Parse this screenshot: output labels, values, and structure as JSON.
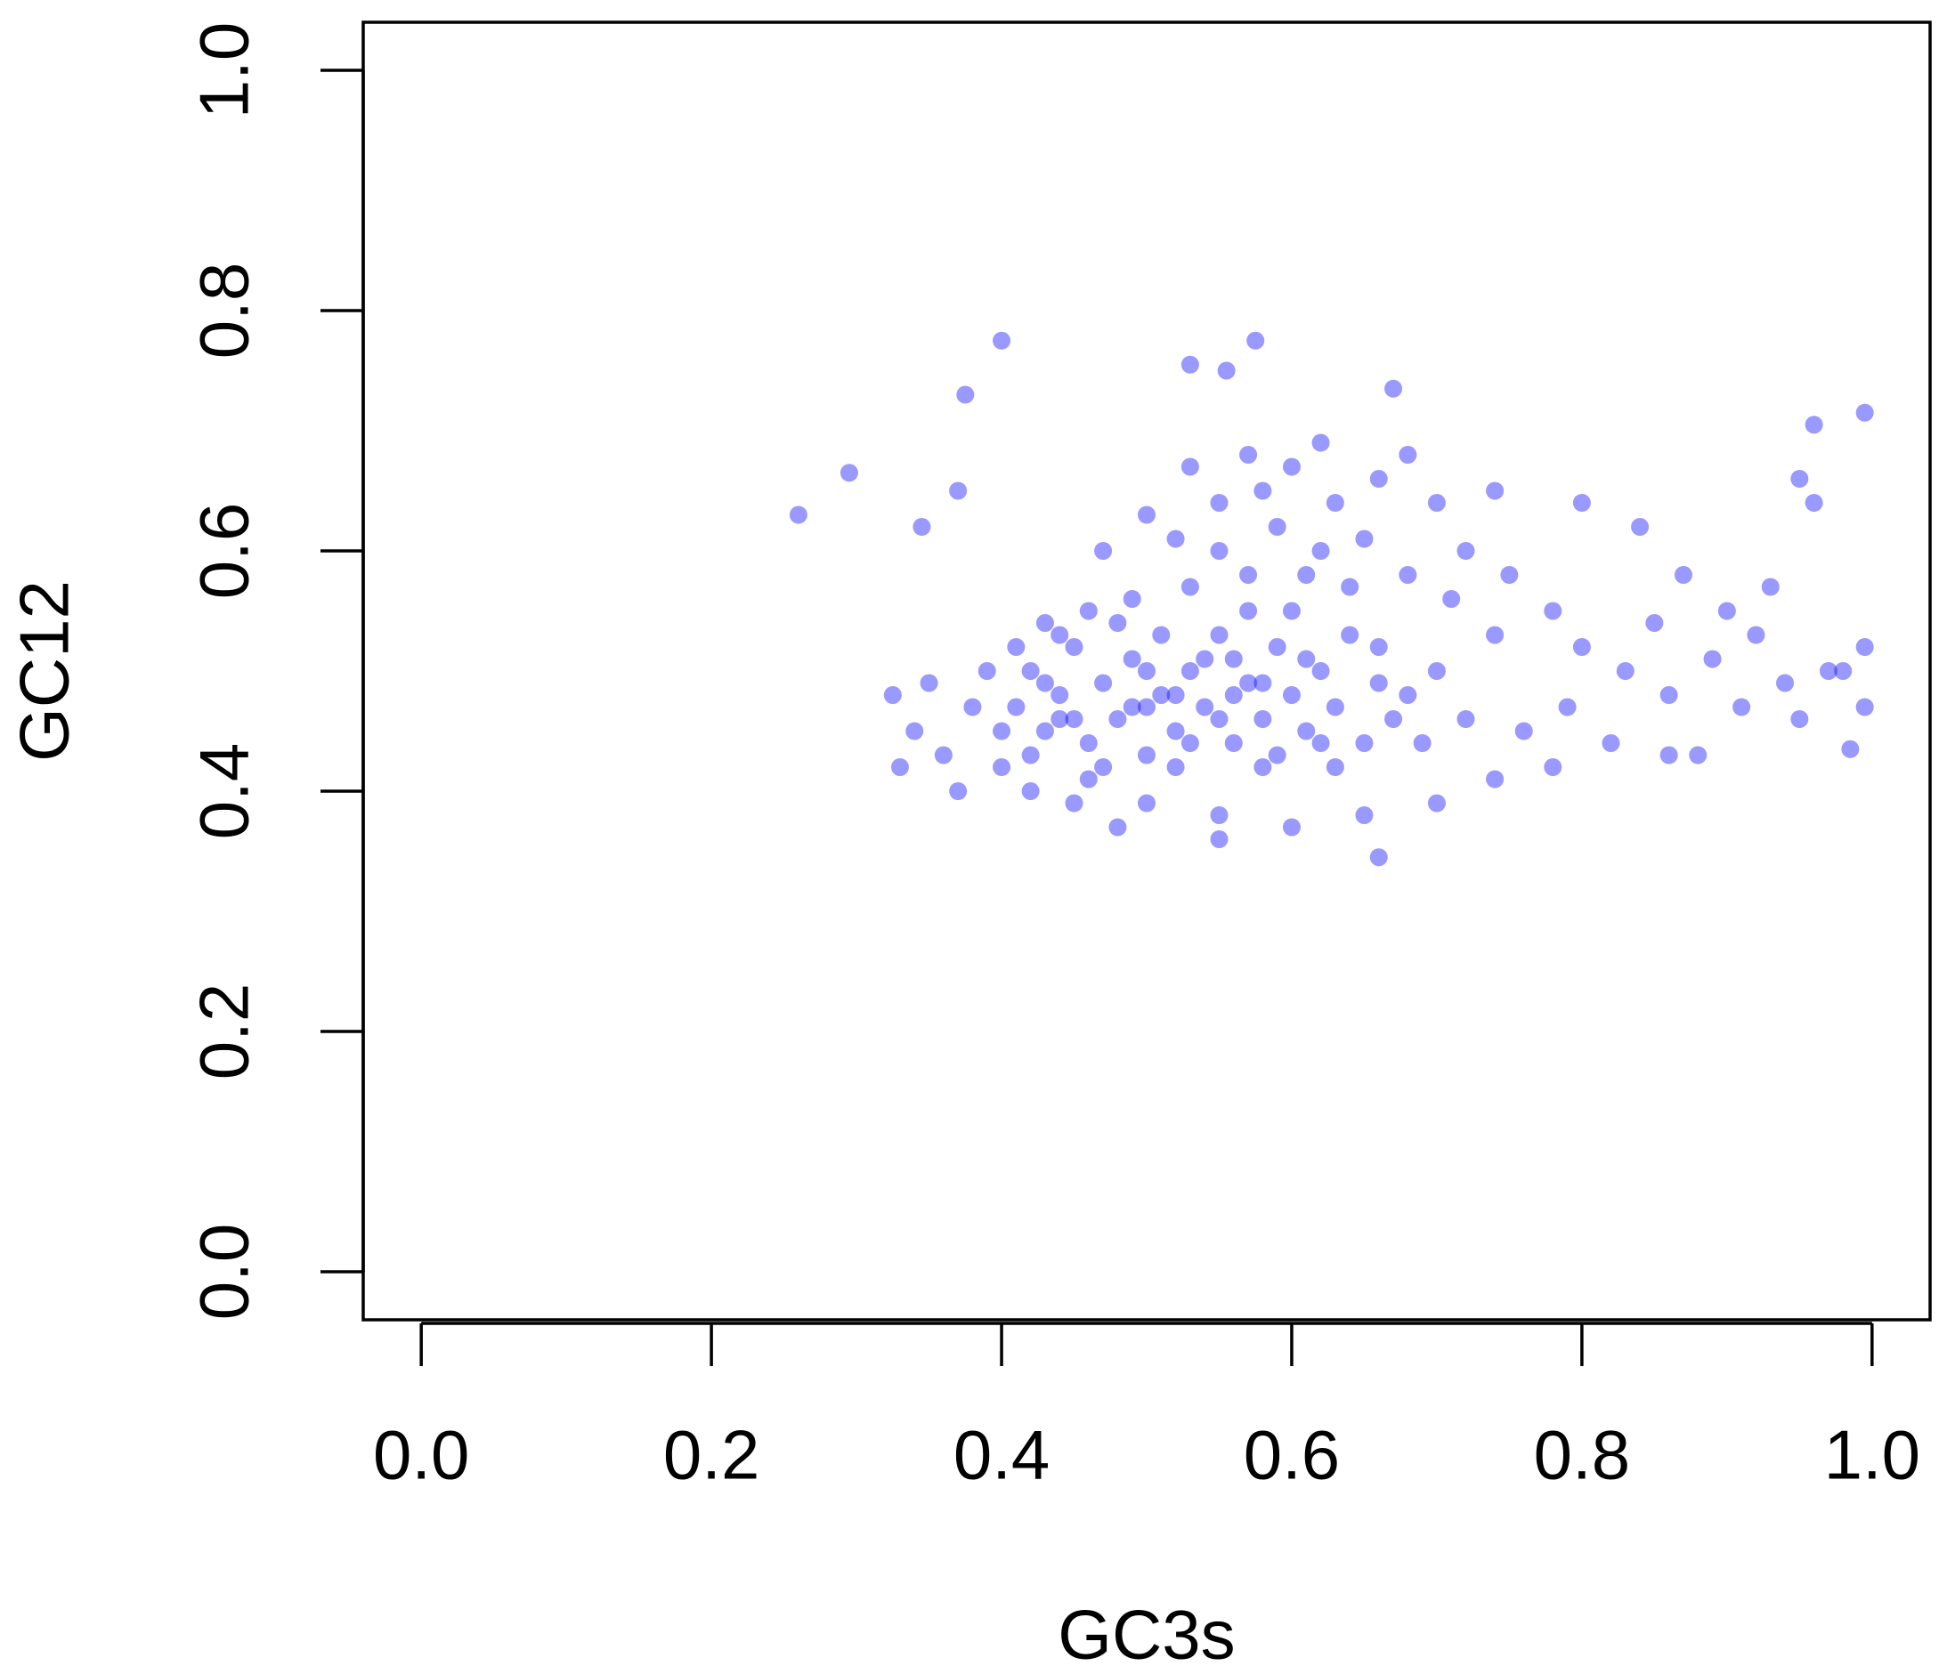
{
  "chart_data": {
    "type": "scatter",
    "xlabel": "GC3s",
    "ylabel": "GC12",
    "color": "#0000ff",
    "xlim": [
      -0.04,
      1.04
    ],
    "ylim": [
      -0.04,
      1.04
    ],
    "xticks": [
      {
        "value": 0,
        "label": "0.0"
      },
      0.2,
      0.4,
      0.6,
      0.8,
      {
        "value": 1,
        "label": "1.0"
      }
    ],
    "yticks": [
      {
        "value": 0,
        "label": "0.0"
      },
      0.2,
      0.4,
      0.6,
      0.8,
      {
        "value": 1,
        "label": "1.0"
      }
    ],
    "x": [
      0.41,
      0.42,
      0.43,
      0.44,
      0.45,
      0.46,
      0.47,
      0.48,
      0.49,
      0.5,
      0.51,
      0.52,
      0.53,
      0.54,
      0.55,
      0.56,
      0.57,
      0.58,
      0.59,
      0.6,
      0.61,
      0.62,
      0.63,
      0.64,
      0.65,
      0.66,
      0.67,
      0.42,
      0.44,
      0.46,
      0.48,
      0.5,
      0.52,
      0.54,
      0.56,
      0.58,
      0.6,
      0.62,
      0.43,
      0.45,
      0.47,
      0.49,
      0.51,
      0.53,
      0.55,
      0.57,
      0.59,
      0.61,
      0.4,
      0.41,
      0.44,
      0.5,
      0.52,
      0.56,
      0.58,
      0.63,
      0.66,
      0.68,
      0.7,
      0.72,
      0.74,
      0.69,
      0.71,
      0.64,
      0.61,
      0.57,
      0.53,
      0.49,
      0.46,
      0.43,
      0.39,
      0.38,
      0.4,
      0.47,
      0.52,
      0.55,
      0.59,
      0.62,
      0.65,
      0.68,
      0.58,
      0.55,
      0.5,
      0.63,
      0.66,
      0.6,
      0.57,
      0.53,
      0.62,
      0.68,
      0.7,
      0.72,
      0.75,
      0.78,
      0.8,
      0.83,
      0.86,
      0.89,
      0.91,
      0.94,
      0.97,
      0.76,
      0.79,
      0.82,
      0.85,
      0.88,
      0.92,
      0.95,
      0.78,
      0.74,
      0.7,
      0.65,
      0.6,
      0.55,
      0.5,
      0.48,
      0.45,
      0.42,
      0.36,
      0.34,
      0.35,
      0.33,
      0.37,
      0.74,
      0.8,
      0.84,
      0.87,
      0.9,
      0.93,
      0.96,
      0.95,
      0.86,
      0.98,
      0.26,
      0.295,
      0.4,
      0.375,
      0.575,
      0.67,
      0.995,
      0.66,
      0.55,
      0.325,
      0.985,
      0.995,
      0.995,
      0.96,
      0.345,
      0.37,
      0.53,
      0.555
    ],
    "values": [
      0.47,
      0.5,
      0.45,
      0.48,
      0.52,
      0.44,
      0.49,
      0.46,
      0.51,
      0.43,
      0.48,
      0.45,
      0.5,
      0.47,
      0.53,
      0.44,
      0.49,
      0.46,
      0.52,
      0.48,
      0.45,
      0.5,
      0.47,
      0.53,
      0.44,
      0.49,
      0.46,
      0.43,
      0.53,
      0.41,
      0.54,
      0.47,
      0.42,
      0.51,
      0.48,
      0.42,
      0.55,
      0.44,
      0.49,
      0.46,
      0.42,
      0.47,
      0.53,
      0.44,
      0.46,
      0.55,
      0.43,
      0.51,
      0.45,
      0.52,
      0.46,
      0.5,
      0.48,
      0.51,
      0.49,
      0.42,
      0.52,
      0.48,
      0.5,
      0.46,
      0.53,
      0.44,
      0.56,
      0.57,
      0.58,
      0.58,
      0.57,
      0.56,
      0.55,
      0.54,
      0.5,
      0.47,
      0.42,
      0.6,
      0.61,
      0.6,
      0.62,
      0.6,
      0.61,
      0.58,
      0.65,
      0.64,
      0.63,
      0.64,
      0.66,
      0.67,
      0.68,
      0.67,
      0.69,
      0.68,
      0.64,
      0.6,
      0.58,
      0.55,
      0.52,
      0.5,
      0.48,
      0.51,
      0.47,
      0.49,
      0.5,
      0.45,
      0.47,
      0.44,
      0.54,
      0.43,
      0.53,
      0.46,
      0.42,
      0.41,
      0.39,
      0.38,
      0.37,
      0.38,
      0.39,
      0.37,
      0.39,
      0.4,
      0.43,
      0.45,
      0.49,
      0.42,
      0.4,
      0.65,
      0.64,
      0.62,
      0.58,
      0.55,
      0.57,
      0.64,
      0.66,
      0.43,
      0.5,
      0.63,
      0.665,
      0.775,
      0.73,
      0.775,
      0.735,
      0.715,
      0.345,
      0.36,
      0.48,
      0.435,
      0.47,
      0.52,
      0.705,
      0.62,
      0.65,
      0.755,
      0.75
    ]
  }
}
